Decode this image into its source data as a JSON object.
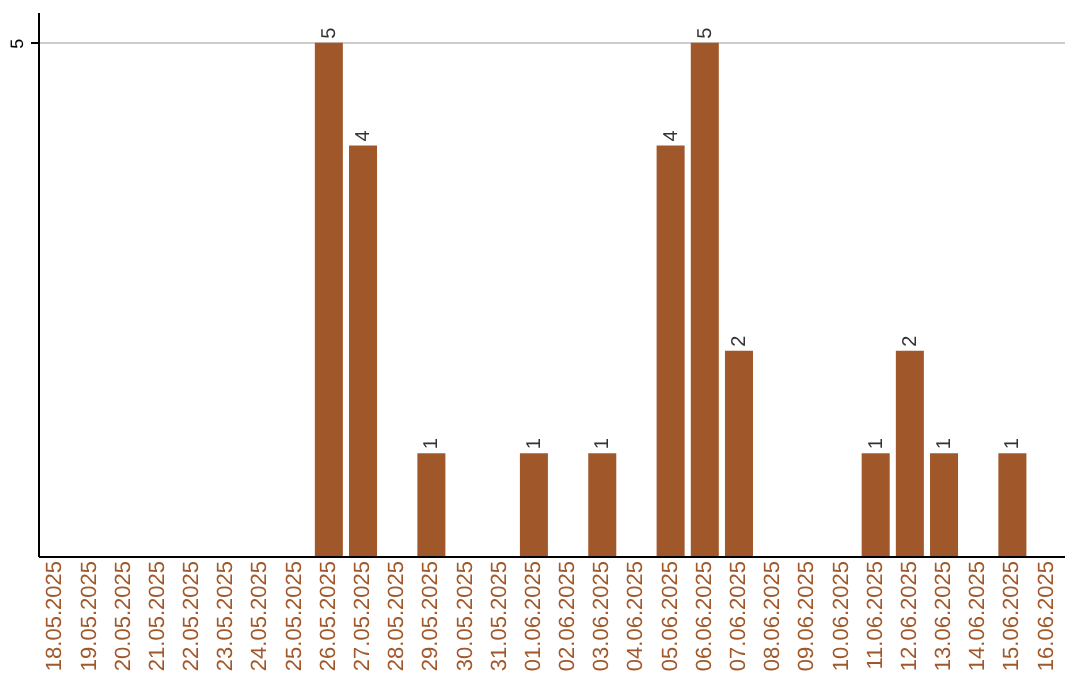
{
  "chart_data": {
    "type": "bar",
    "categories": [
      "18.05.2025",
      "19.05.2025",
      "20.05.2025",
      "21.05.2025",
      "22.05.2025",
      "23.05.2025",
      "24.05.2025",
      "25.05.2025",
      "26.05.2025",
      "27.05.2025",
      "28.05.2025",
      "29.05.2025",
      "30.05.2025",
      "31.05.2025",
      "01.06.2025",
      "02.06.2025",
      "03.06.2025",
      "04.06.2025",
      "05.06.2025",
      "06.06.2025",
      "07.06.2025",
      "08.06.2025",
      "09.06.2025",
      "10.06.2025",
      "11.06.2025",
      "12.06.2025",
      "13.06.2025",
      "14.06.2025",
      "15.06.2025",
      "16.06.2025"
    ],
    "values": [
      0,
      0,
      0,
      0,
      0,
      0,
      0,
      0,
      5,
      4,
      0,
      1,
      0,
      0,
      1,
      0,
      1,
      0,
      4,
      5,
      2,
      0,
      0,
      0,
      1,
      2,
      1,
      0,
      1,
      0
    ],
    "value_labels": [
      null,
      null,
      null,
      null,
      null,
      null,
      null,
      null,
      "5",
      "4",
      null,
      "1",
      null,
      null,
      "1",
      null,
      "1",
      null,
      "4",
      "5",
      "2",
      null,
      null,
      null,
      "1",
      "2",
      "1",
      null,
      "1",
      null
    ],
    "color": "#a0582a",
    "ylim": [
      0,
      5.3
    ],
    "yticks": [
      5
    ],
    "grid": "y"
  }
}
